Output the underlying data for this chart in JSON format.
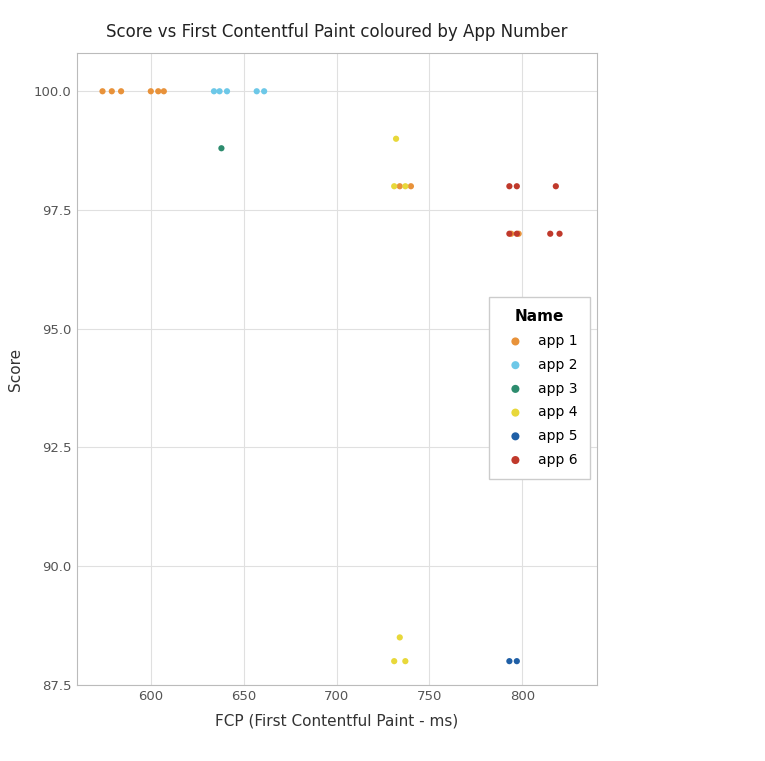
{
  "title": "Score vs First Contentful Paint coloured by App Number",
  "xlabel": "FCP (First Contentful Paint - ms)",
  "ylabel": "Score",
  "xlim": [
    560,
    840
  ],
  "ylim": [
    87.5,
    100.8
  ],
  "yticks": [
    87.5,
    90.0,
    92.5,
    95.0,
    97.5,
    100.0
  ],
  "xticks": [
    600,
    650,
    700,
    750,
    800
  ],
  "apps": {
    "app 1": {
      "color": "#E8923A",
      "points": [
        [
          574,
          100
        ],
        [
          579,
          100
        ],
        [
          584,
          100
        ],
        [
          600,
          100
        ],
        [
          604,
          100
        ],
        [
          607,
          100
        ],
        [
          734,
          98
        ],
        [
          740,
          98
        ],
        [
          794,
          97
        ],
        [
          798,
          97
        ]
      ]
    },
    "app 2": {
      "color": "#6DC8E8",
      "points": [
        [
          634,
          100
        ],
        [
          637,
          100
        ],
        [
          641,
          100
        ],
        [
          657,
          100
        ],
        [
          661,
          100
        ]
      ]
    },
    "app 3": {
      "color": "#2D8C6E",
      "points": [
        [
          638,
          98.8
        ]
      ]
    },
    "app 4": {
      "color": "#E8D83A",
      "points": [
        [
          732,
          99.0
        ],
        [
          731,
          98.0
        ],
        [
          737,
          98.0
        ],
        [
          734,
          88.5
        ],
        [
          731,
          88.0
        ],
        [
          737,
          88.0
        ]
      ]
    },
    "app 5": {
      "color": "#1F5FA6",
      "points": [
        [
          793,
          88.0
        ],
        [
          797,
          88.0
        ]
      ]
    },
    "app 6": {
      "color": "#C0392B",
      "points": [
        [
          793,
          98.0
        ],
        [
          797,
          98.0
        ],
        [
          818,
          98.0
        ],
        [
          793,
          97.0
        ],
        [
          797,
          97.0
        ],
        [
          815,
          97.0
        ],
        [
          820,
          97.0
        ]
      ]
    }
  },
  "legend_title": "Name",
  "background_color": "#ffffff",
  "grid_color": "#e0e0e0",
  "figure_width": 7.65,
  "figure_height": 7.61,
  "dpi": 100
}
